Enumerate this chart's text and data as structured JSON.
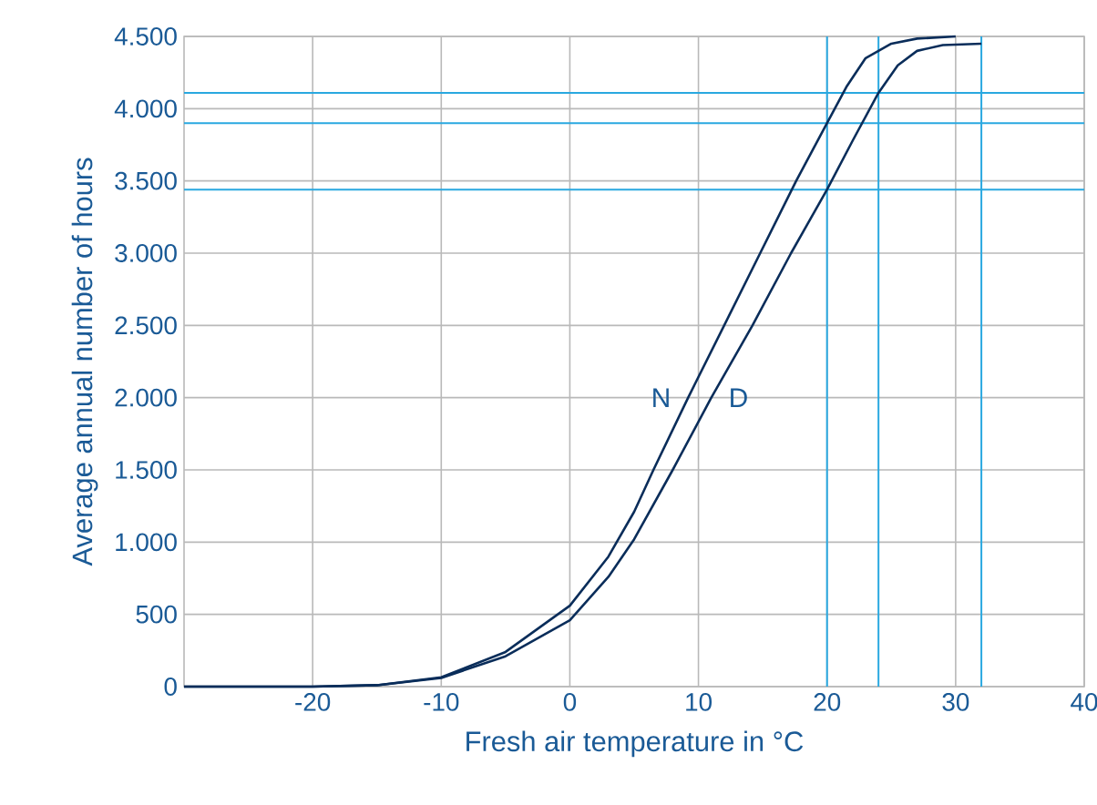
{
  "chart_data": {
    "type": "line",
    "xlabel": "Fresh air temperature in °C",
    "ylabel": "Average annual number of hours",
    "xlim": [
      -30,
      40
    ],
    "xticks": [
      -20,
      -10,
      0,
      10,
      20,
      30,
      40
    ],
    "ylim": [
      0,
      4500
    ],
    "yticks": [
      0,
      500,
      {
        "value": 1000,
        "label": "1.000"
      },
      {
        "value": 1500,
        "label": "1.500"
      },
      {
        "value": 2000,
        "label": "2.000"
      },
      {
        "value": 2500,
        "label": "2.500"
      },
      {
        "value": 3000,
        "label": "3.000"
      },
      {
        "value": 3500,
        "label": "3.500"
      },
      {
        "value": 4000,
        "label": "4.000"
      },
      {
        "value": 4500,
        "label": "4.500"
      }
    ],
    "grid": true,
    "marker": "none",
    "line_style": "solid",
    "ref_lines": [
      {
        "axis": "y",
        "value": 4110,
        "color": "#29a8e0"
      },
      {
        "axis": "y",
        "value": 3900,
        "color": "#29a8e0"
      },
      {
        "axis": "y",
        "value": 3440,
        "color": "#29a8e0"
      },
      {
        "axis": "x",
        "value": 20,
        "color": "#29a8e0"
      },
      {
        "axis": "x",
        "value": 24,
        "color": "#29a8e0"
      },
      {
        "axis": "x",
        "value": 32,
        "color": "#29a8e0"
      }
    ],
    "series": [
      {
        "name": "N",
        "color": "#0a2d5a",
        "x": [
          -30,
          -20,
          -15,
          -10,
          -5,
          0,
          3,
          5,
          6.5,
          9.2,
          12,
          14.8,
          17.6,
          20,
          21.5,
          23,
          25,
          27,
          30
        ],
        "values": [
          0,
          0,
          10,
          65,
          240,
          560,
          900,
          1210,
          1500,
          2000,
          2500,
          3000,
          3500,
          3900,
          4150,
          4350,
          4450,
          4485,
          4500
        ]
      },
      {
        "name": "D",
        "color": "#0a2d5a",
        "x": [
          -30,
          -20,
          -15,
          -10,
          -5,
          0,
          3,
          5,
          8,
          11,
          14.2,
          17.2,
          20,
          22,
          24,
          25.5,
          27,
          29,
          32
        ],
        "values": [
          0,
          0,
          10,
          60,
          210,
          460,
          760,
          1020,
          1500,
          2000,
          2500,
          3000,
          3440,
          3780,
          4110,
          4300,
          4400,
          4440,
          4450
        ]
      }
    ]
  }
}
